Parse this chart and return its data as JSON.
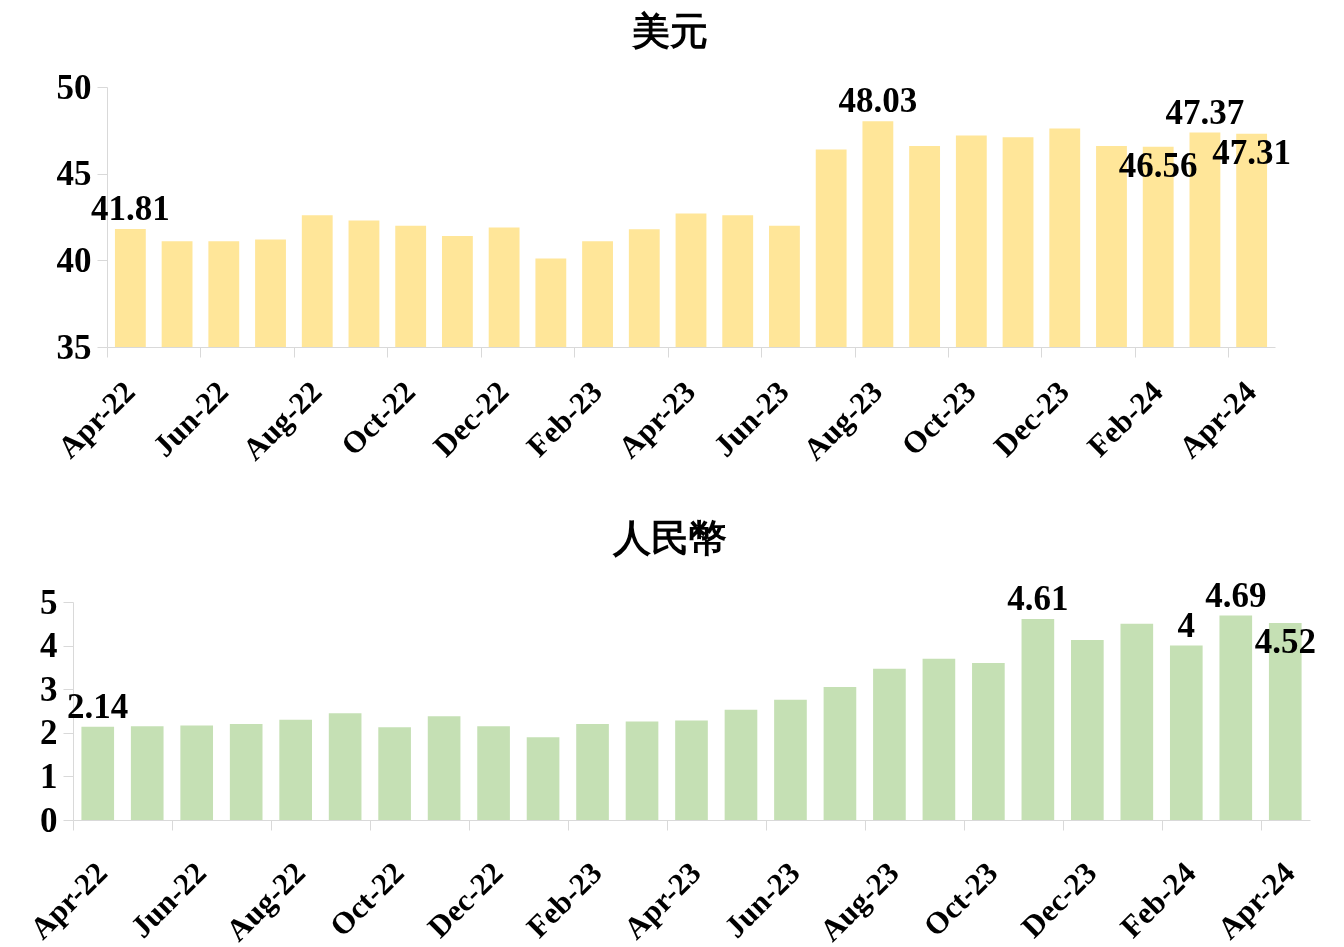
{
  "chart_data": [
    {
      "type": "bar",
      "title": "美元",
      "categories": [
        "Apr-22",
        null,
        "Jun-22",
        null,
        "Aug-22",
        null,
        "Oct-22",
        null,
        "Dec-22",
        null,
        "Feb-23",
        null,
        "Apr-23",
        null,
        "Jun-23",
        null,
        "Aug-23",
        null,
        "Oct-23",
        null,
        "Dec-23",
        null,
        "Feb-24",
        null,
        "Apr-24"
      ],
      "values": [
        41.81,
        41.1,
        41.1,
        41.2,
        42.6,
        42.3,
        42.0,
        41.4,
        41.9,
        40.1,
        41.1,
        41.8,
        42.7,
        42.6,
        42.0,
        46.4,
        48.03,
        46.6,
        47.2,
        47.1,
        47.6,
        46.6,
        46.56,
        47.37,
        47.31
      ],
      "value_labels": [
        "41.81",
        null,
        null,
        null,
        null,
        null,
        null,
        null,
        null,
        null,
        null,
        null,
        null,
        null,
        null,
        null,
        "48.03",
        null,
        null,
        null,
        null,
        null,
        "46.56",
        "47.37",
        "47.31"
      ],
      "color": "#ffe699",
      "ylim": [
        35,
        50
      ],
      "yticks": [
        35,
        40,
        45,
        50
      ]
    },
    {
      "type": "bar",
      "title": "人民幣",
      "categories": [
        "Apr-22",
        null,
        "Jun-22",
        null,
        "Aug-22",
        null,
        "Oct-22",
        null,
        "Dec-22",
        null,
        "Feb-23",
        null,
        "Apr-23",
        null,
        "Jun-23",
        null,
        "Aug-23",
        null,
        "Oct-23",
        null,
        "Dec-23",
        null,
        "Feb-24",
        null,
        "Apr-24"
      ],
      "values": [
        2.14,
        2.15,
        2.17,
        2.2,
        2.3,
        2.45,
        2.13,
        2.38,
        2.15,
        1.9,
        2.2,
        2.26,
        2.28,
        2.53,
        2.76,
        3.05,
        3.47,
        3.7,
        3.6,
        4.61,
        4.13,
        4.5,
        4,
        4.69,
        4.52
      ],
      "value_labels": [
        "2.14",
        null,
        null,
        null,
        null,
        null,
        null,
        null,
        null,
        null,
        null,
        null,
        null,
        null,
        null,
        null,
        null,
        null,
        null,
        "4.61",
        null,
        null,
        "4",
        "4.69",
        "4.52"
      ],
      "color": "#c5e0b4",
      "ylim": [
        0,
        5
      ],
      "yticks": [
        0,
        1,
        2,
        3,
        4,
        5
      ]
    }
  ]
}
